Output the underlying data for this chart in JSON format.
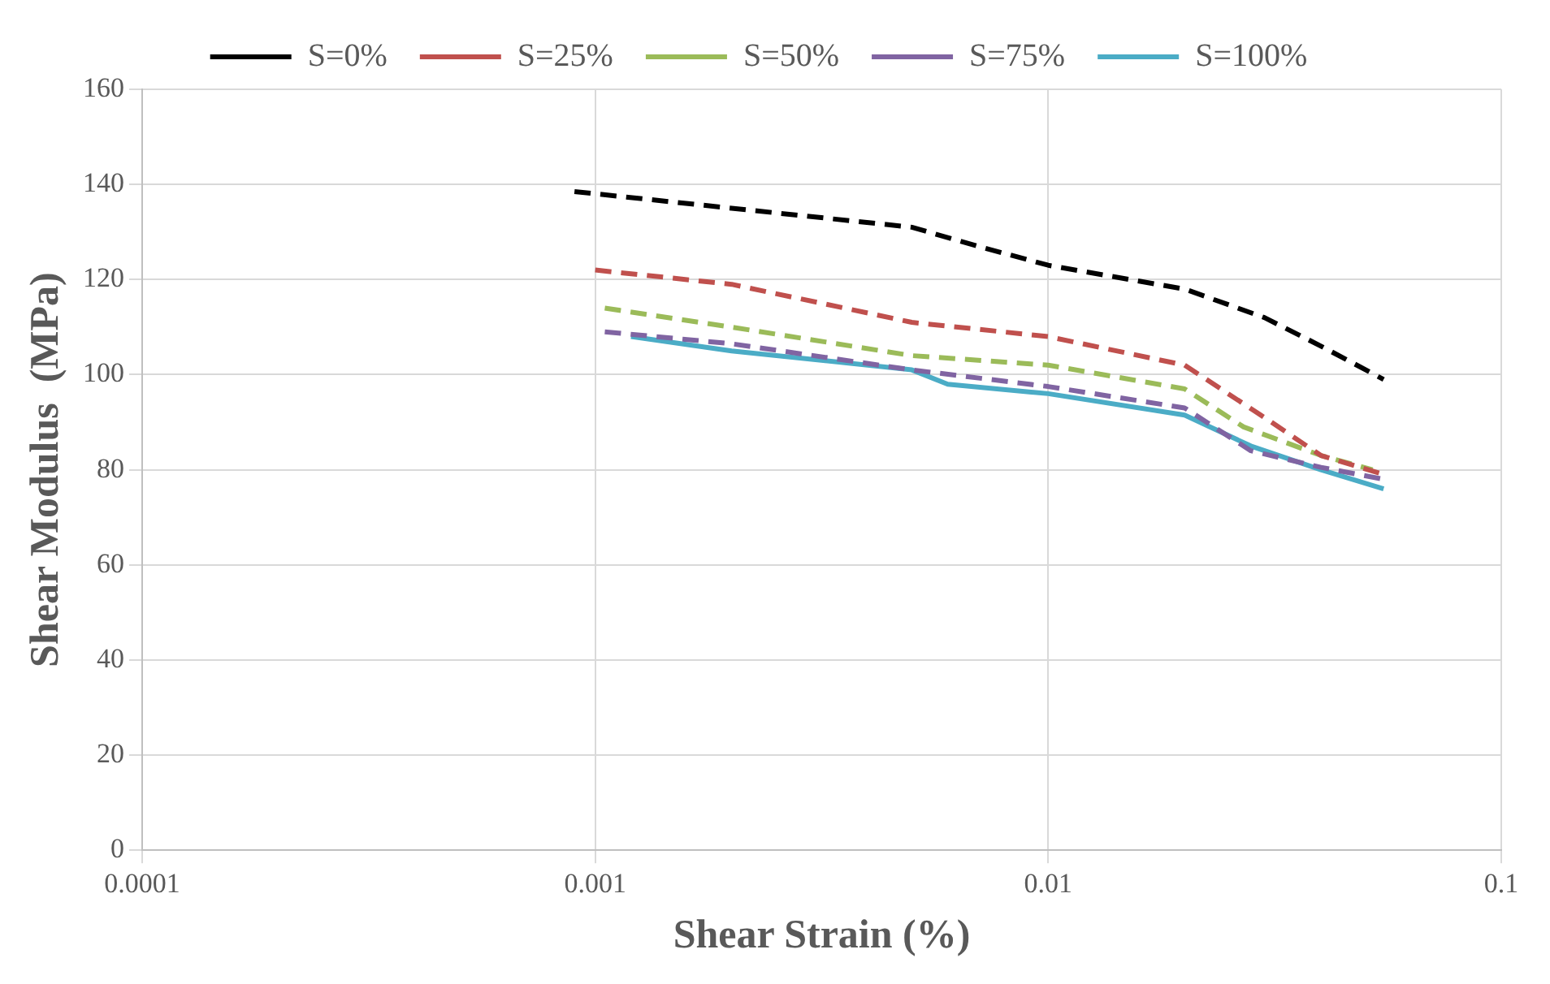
{
  "chart_data": {
    "type": "line",
    "xlabel": "Shear Strain (%)",
    "ylabel": "Shear Modulus  (MPa)",
    "log": "x",
    "xlim": [
      0.0001,
      0.1
    ],
    "xticks": [
      0.0001,
      0.001,
      0.01,
      0.1
    ],
    "ylim": [
      0,
      160
    ],
    "yticks": [
      0,
      20,
      40,
      60,
      80,
      100,
      120,
      140,
      160
    ],
    "grid": true,
    "legend": "top",
    "marker": "none",
    "series": [
      {
        "name": "S=0%",
        "color": "#000000",
        "line_style": "dashed",
        "x": [
          0.0009,
          0.002,
          0.005,
          0.007,
          0.01,
          0.02,
          0.03,
          0.04,
          0.055
        ],
        "values": [
          138.5,
          135,
          131,
          127,
          123,
          118,
          112,
          106,
          99
        ]
      },
      {
        "name": "S=25%",
        "color": "#c0504d",
        "line_style": "dashed",
        "x": [
          0.001,
          0.002,
          0.005,
          0.01,
          0.02,
          0.03,
          0.04,
          0.055
        ],
        "values": [
          122,
          119,
          111,
          108,
          102,
          91,
          83,
          79
        ]
      },
      {
        "name": "S=50%",
        "color": "#9bbb59",
        "line_style": "dashed",
        "x": [
          0.00105,
          0.002,
          0.005,
          0.01,
          0.02,
          0.027,
          0.04,
          0.052
        ],
        "values": [
          114,
          110,
          104,
          102,
          97,
          89,
          83,
          80
        ]
      },
      {
        "name": "S=75%",
        "color": "#8064a2",
        "line_style": "dashed",
        "x": [
          0.00105,
          0.002,
          0.005,
          0.01,
          0.02,
          0.028,
          0.04,
          0.055
        ],
        "values": [
          109,
          106.5,
          101,
          97.5,
          93,
          84,
          80.5,
          78
        ]
      },
      {
        "name": "S=100%",
        "color": "#4bacc6",
        "line_style": "solid",
        "x": [
          0.0012,
          0.002,
          0.005,
          0.006,
          0.01,
          0.02,
          0.028,
          0.04,
          0.055
        ],
        "values": [
          108,
          105,
          101,
          98,
          96,
          91.5,
          85,
          80,
          76
        ]
      }
    ]
  }
}
